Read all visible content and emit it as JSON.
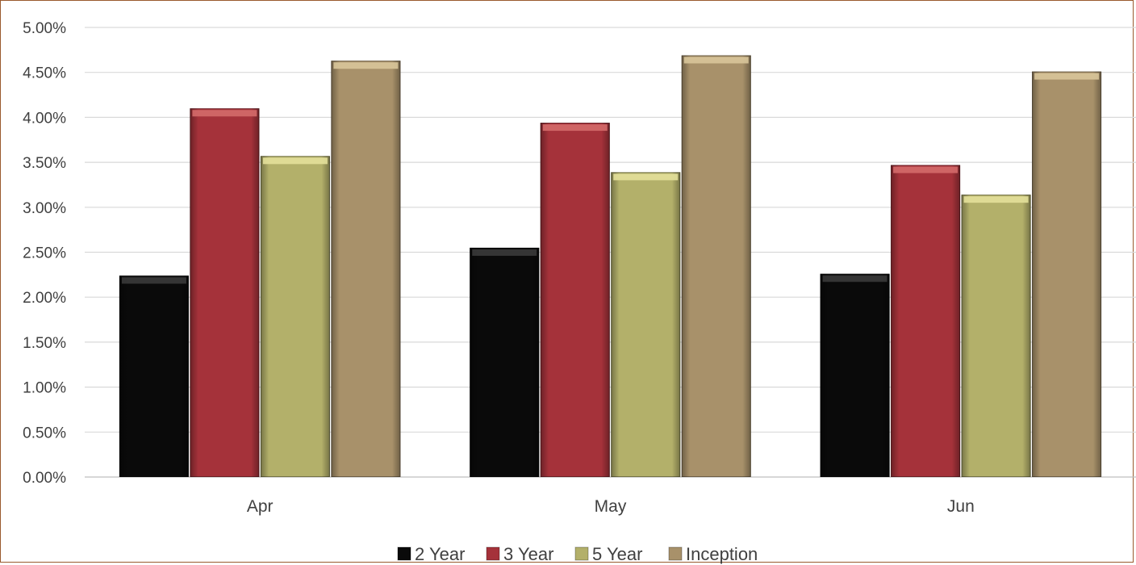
{
  "chart_data": {
    "type": "bar",
    "title": "",
    "xlabel": "",
    "ylabel": "",
    "categories": [
      "Apr",
      "May",
      "Jun"
    ],
    "series": [
      {
        "name": "2 Year",
        "values": [
          2.24,
          2.55,
          2.26
        ],
        "color": "#0a0a0a",
        "cap": "#3a3a3a"
      },
      {
        "name": "3 Year",
        "values": [
          4.1,
          3.94,
          3.47
        ],
        "color": "#a5323a",
        "cap": "#d46a6a"
      },
      {
        "name": "5 Year",
        "values": [
          3.57,
          3.39,
          3.14
        ],
        "color": "#b3b06a",
        "cap": "#e3e09a"
      },
      {
        "name": "Inception",
        "values": [
          4.63,
          4.69,
          4.51
        ],
        "color": "#a8916a",
        "cap": "#d8c59a"
      }
    ],
    "ylim": [
      0,
      5
    ],
    "yticks": [
      "0.00%",
      "0.50%",
      "1.00%",
      "1.50%",
      "2.00%",
      "2.50%",
      "3.00%",
      "3.50%",
      "4.00%",
      "4.50%",
      "5.00%"
    ],
    "ytick_step": 0.5,
    "grid": true,
    "legend_position": "bottom"
  }
}
